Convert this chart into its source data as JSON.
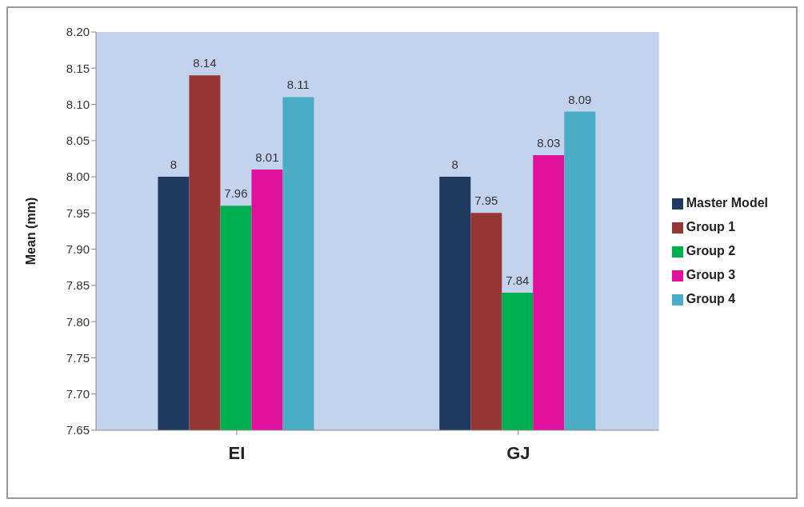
{
  "chart_data": {
    "type": "bar",
    "ylabel": "Mean (mm)",
    "categories": [
      "EI",
      "GJ"
    ],
    "series": [
      {
        "name": "Master Model",
        "color": "#1f3a5f",
        "values": [
          8,
          8
        ]
      },
      {
        "name": "Group 1",
        "color": "#953735",
        "values": [
          8.14,
          7.95
        ]
      },
      {
        "name": "Group 2",
        "color": "#00b050",
        "values": [
          7.96,
          7.84
        ]
      },
      {
        "name": "Group 3",
        "color": "#e0119d",
        "values": [
          8.01,
          8.03
        ]
      },
      {
        "name": "Group 4",
        "color": "#4bacc6",
        "values": [
          8.11,
          8.09
        ]
      }
    ],
    "ylim": [
      7.65,
      8.2
    ],
    "yticks": [
      {
        "value": 7.65,
        "label": "7.65"
      },
      {
        "value": 7.7,
        "label": "7.70"
      },
      {
        "value": 7.75,
        "label": "7.75"
      },
      {
        "value": 7.8,
        "label": "7.80"
      },
      {
        "value": 7.85,
        "label": "7.85"
      },
      {
        "value": 7.9,
        "label": "7.90"
      },
      {
        "value": 7.95,
        "label": "7.95"
      },
      {
        "value": 8,
        "label": "8.00"
      },
      {
        "value": 8.05,
        "label": "8.05"
      },
      {
        "value": 8.1,
        "label": "8.10"
      },
      {
        "value": 8.15,
        "label": "8.15"
      },
      {
        "value": 8.2,
        "label": "8.20"
      }
    ],
    "data_labels": true,
    "legend": "right",
    "grid": false
  }
}
